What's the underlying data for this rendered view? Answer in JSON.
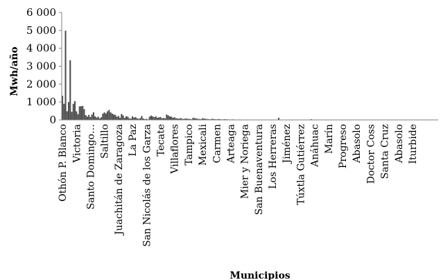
{
  "chart_data": {
    "type": "bar",
    "title": "",
    "xlabel": "Municipios",
    "ylabel": "Mwh/año",
    "ylim": [
      0,
      6000
    ],
    "yticks": [
      0,
      1000,
      2000,
      3000,
      4000,
      5000,
      6000
    ],
    "ytick_labels": [
      "0",
      "1 000",
      "2 000",
      "3 000",
      "4 000",
      "5 000",
      "6 000"
    ],
    "grid": false,
    "legend": "none",
    "bar_color": "#4d4d4d",
    "axis_color": "#7f7f7f",
    "tick_labels": [
      {
        "label": "Othón P. Blanco",
        "index": 0
      },
      {
        "label": "Victoria",
        "index": 9
      },
      {
        "label": "Santo Domingo…",
        "index": 18
      },
      {
        "label": "Saltillo",
        "index": 27
      },
      {
        "label": "Juachitán de Zaragoza",
        "index": 36
      },
      {
        "label": "La Paz",
        "index": 45
      },
      {
        "label": "San Nicolás de los Garza",
        "index": 54
      },
      {
        "label": "Tecate",
        "index": 63
      },
      {
        "label": "Villaflores",
        "index": 72
      },
      {
        "label": "Tampico",
        "index": 81
      },
      {
        "label": "Mexicali",
        "index": 90
      },
      {
        "label": "Carmen",
        "index": 99
      },
      {
        "label": "Arteaga",
        "index": 108
      },
      {
        "label": "Mier y Noriega",
        "index": 117
      },
      {
        "label": "San Buenaventura",
        "index": 126
      },
      {
        "label": "Los Herreras",
        "index": 135
      },
      {
        "label": "Jiménez",
        "index": 144
      },
      {
        "label": "Túxtla Gutiérrez",
        "index": 153
      },
      {
        "label": "Anáhuac",
        "index": 162
      },
      {
        "label": "Marín",
        "index": 171
      },
      {
        "label": "Progreso",
        "index": 180
      },
      {
        "label": "Abasolo",
        "index": 189
      },
      {
        "label": "Doctor Coss",
        "index": 198
      },
      {
        "label": "Santa Cruz",
        "index": 207
      },
      {
        "label": "Abasolo",
        "index": 216
      },
      {
        "label": "Iturbide",
        "index": 225
      }
    ],
    "values": [
      1350,
      900,
      4980,
      480,
      1000,
      3330,
      450,
      900,
      1050,
      480,
      320,
      760,
      760,
      780,
      600,
      260,
      180,
      280,
      160,
      300,
      420,
      200,
      130,
      180,
      80,
      150,
      350,
      420,
      360,
      480,
      560,
      420,
      350,
      300,
      280,
      180,
      220,
      120,
      330,
      250,
      110,
      200,
      180,
      90,
      70,
      200,
      130,
      160,
      90,
      60,
      100,
      220,
      80,
      40,
      60,
      30,
      180,
      240,
      200,
      150,
      200,
      120,
      140,
      160,
      90,
      110,
      80,
      300,
      250,
      200,
      180,
      120,
      150,
      90,
      80,
      70,
      100,
      60,
      50,
      80,
      70,
      60,
      50,
      40,
      120,
      100,
      80,
      60,
      50,
      40,
      90,
      80,
      60,
      50,
      40,
      30,
      60,
      50,
      40,
      30,
      50,
      40,
      30,
      25,
      40,
      35,
      30,
      25,
      20,
      30,
      25,
      20,
      18,
      15,
      25,
      20,
      18,
      15,
      12,
      20,
      18,
      15,
      12,
      10,
      15,
      12,
      10,
      9,
      8,
      12,
      10,
      8,
      7,
      6,
      10,
      8,
      7,
      6,
      5,
      120,
      8,
      7,
      6,
      5,
      4,
      7,
      6,
      5,
      4,
      3,
      6,
      5,
      4,
      3,
      2,
      5,
      4,
      3,
      2,
      2,
      40,
      4,
      3,
      2,
      2,
      4,
      3,
      2,
      2,
      1,
      3,
      2,
      2,
      1,
      1,
      3,
      2,
      2,
      1,
      1,
      2,
      2,
      1,
      1,
      1,
      2,
      2,
      1,
      1,
      1,
      2,
      1,
      1,
      1,
      1,
      2,
      1,
      1,
      1,
      1,
      1,
      1,
      1,
      1,
      1,
      1,
      1,
      1,
      1,
      1,
      1,
      1,
      1,
      1,
      1,
      1,
      1,
      1,
      1,
      1,
      1,
      1,
      1,
      1,
      1,
      1,
      1,
      1,
      1,
      1,
      1,
      1,
      1,
      1,
      1,
      1,
      1,
      1,
      1,
      1,
      1,
      1
    ]
  }
}
